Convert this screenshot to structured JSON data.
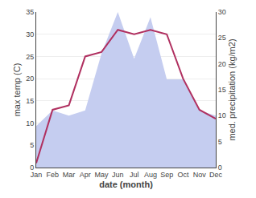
{
  "chart_data": {
    "type": "line",
    "categories": [
      "Jan",
      "Feb",
      "Mar",
      "Apr",
      "May",
      "Jun",
      "Jul",
      "Aug",
      "Sep",
      "Oct",
      "Nov",
      "Dec"
    ],
    "xlabel": "date (month)",
    "ylabel": "max temp (C)",
    "y2label": "med. precipitation (kg/m2)",
    "ylim": [
      0,
      35
    ],
    "yticks": [
      0,
      5,
      10,
      15,
      20,
      25,
      30,
      35
    ],
    "y2lim": [
      0,
      30
    ],
    "y2ticks": [
      0,
      5,
      10,
      15,
      20,
      25,
      30
    ],
    "grid": true,
    "series": [
      {
        "type": "area",
        "color": "#c5cdf0",
        "axis": "y2",
        "values": [
          8,
          11,
          10,
          11,
          22,
          30,
          21,
          29,
          17,
          17,
          11,
          10
        ]
      },
      {
        "type": "line",
        "color": "#b03060",
        "values": [
          1,
          13,
          14,
          25,
          26,
          31,
          30,
          31,
          30,
          20,
          13,
          11
        ]
      }
    ]
  }
}
